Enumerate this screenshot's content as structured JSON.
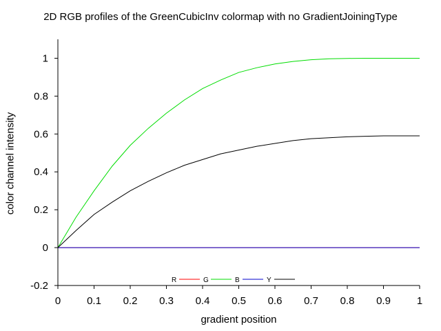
{
  "chart_data": {
    "type": "line",
    "title": "2D RGB profiles of the GreenCubicInv colormap with no GradientJoiningType",
    "xlabel": "gradient position",
    "ylabel": "color channel intensity",
    "xlim": [
      0,
      1
    ],
    "ylim": [
      -0.2,
      1.1
    ],
    "xticks": [
      "0",
      "0.1",
      "0.2",
      "0.3",
      "0.4",
      "0.5",
      "0.6",
      "0.7",
      "0.8",
      "0.9",
      "1"
    ],
    "yticks": [
      "-0.2",
      "0",
      "0.2",
      "0.4",
      "0.6",
      "0.8",
      "1"
    ],
    "grid": false,
    "legend_position": "bottom-center",
    "x": [
      0,
      0.05,
      0.1,
      0.15,
      0.2,
      0.25,
      0.3,
      0.35,
      0.4,
      0.45,
      0.5,
      0.55,
      0.6,
      0.65,
      0.7,
      0.75,
      0.8,
      0.85,
      0.9,
      0.95,
      1
    ],
    "series": [
      {
        "name": "R",
        "color": "#ff0000",
        "values": [
          0,
          0,
          0,
          0,
          0,
          0,
          0,
          0,
          0,
          0,
          0,
          0,
          0,
          0,
          0,
          0,
          0,
          0,
          0,
          0,
          0
        ]
      },
      {
        "name": "G",
        "color": "#00dd00",
        "values": [
          0,
          0.16,
          0.3,
          0.43,
          0.54,
          0.63,
          0.71,
          0.78,
          0.84,
          0.885,
          0.925,
          0.95,
          0.97,
          0.983,
          0.992,
          0.997,
          0.999,
          1.0,
          1.0,
          1.0,
          1.0
        ]
      },
      {
        "name": "B",
        "color": "#0000cc",
        "values": [
          0,
          0,
          0,
          0,
          0,
          0,
          0,
          0,
          0,
          0,
          0,
          0,
          0,
          0,
          0,
          0,
          0,
          0,
          0,
          0,
          0
        ]
      },
      {
        "name": "Y",
        "color": "#000000",
        "values": [
          0,
          0.09,
          0.175,
          0.24,
          0.3,
          0.35,
          0.395,
          0.435,
          0.465,
          0.495,
          0.515,
          0.535,
          0.55,
          0.565,
          0.575,
          0.58,
          0.585,
          0.588,
          0.59,
          0.59,
          0.59
        ]
      }
    ]
  }
}
